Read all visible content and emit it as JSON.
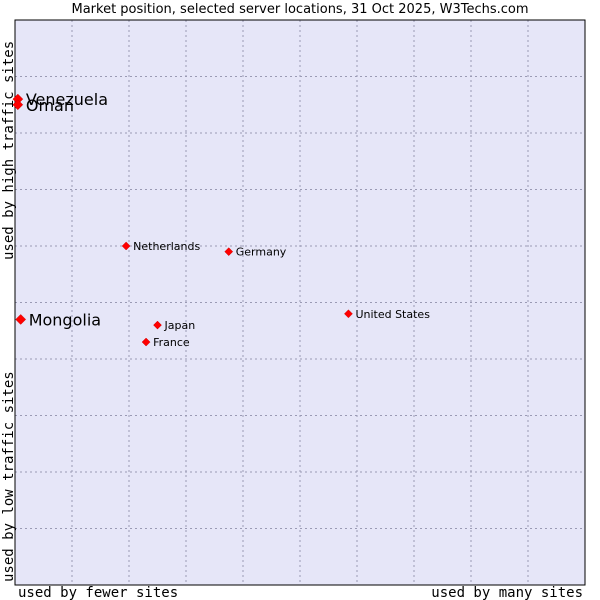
{
  "chart_data": {
    "type": "scatter",
    "title": "Market position, selected server locations, 31 Oct 2025, W3Techs.com",
    "xlabel_low": "used by fewer sites",
    "xlabel_high": "used by many sites",
    "ylabel_low": "used by low traffic sites",
    "ylabel_high": "used by high traffic sites",
    "xlim": [
      0,
      10
    ],
    "ylim": [
      0,
      10
    ],
    "grid": true,
    "colors": {
      "plot_bg": "#e6e6f8",
      "grid": "#9a9ab4",
      "border": "#000000",
      "point": "#ff0000"
    },
    "points": [
      {
        "name": "Venezuela",
        "x": 0.05,
        "y": 8.6,
        "size": "large"
      },
      {
        "name": "Oman",
        "x": 0.05,
        "y": 8.5,
        "size": "large"
      },
      {
        "name": "Netherlands",
        "x": 1.95,
        "y": 6.0,
        "size": "small"
      },
      {
        "name": "Germany",
        "x": 3.75,
        "y": 5.9,
        "size": "small"
      },
      {
        "name": "Mongolia",
        "x": 0.1,
        "y": 4.7,
        "size": "large"
      },
      {
        "name": "United States",
        "x": 5.85,
        "y": 4.8,
        "size": "small"
      },
      {
        "name": "Japan",
        "x": 2.5,
        "y": 4.6,
        "size": "small"
      },
      {
        "name": "France",
        "x": 2.3,
        "y": 4.3,
        "size": "small"
      }
    ]
  }
}
